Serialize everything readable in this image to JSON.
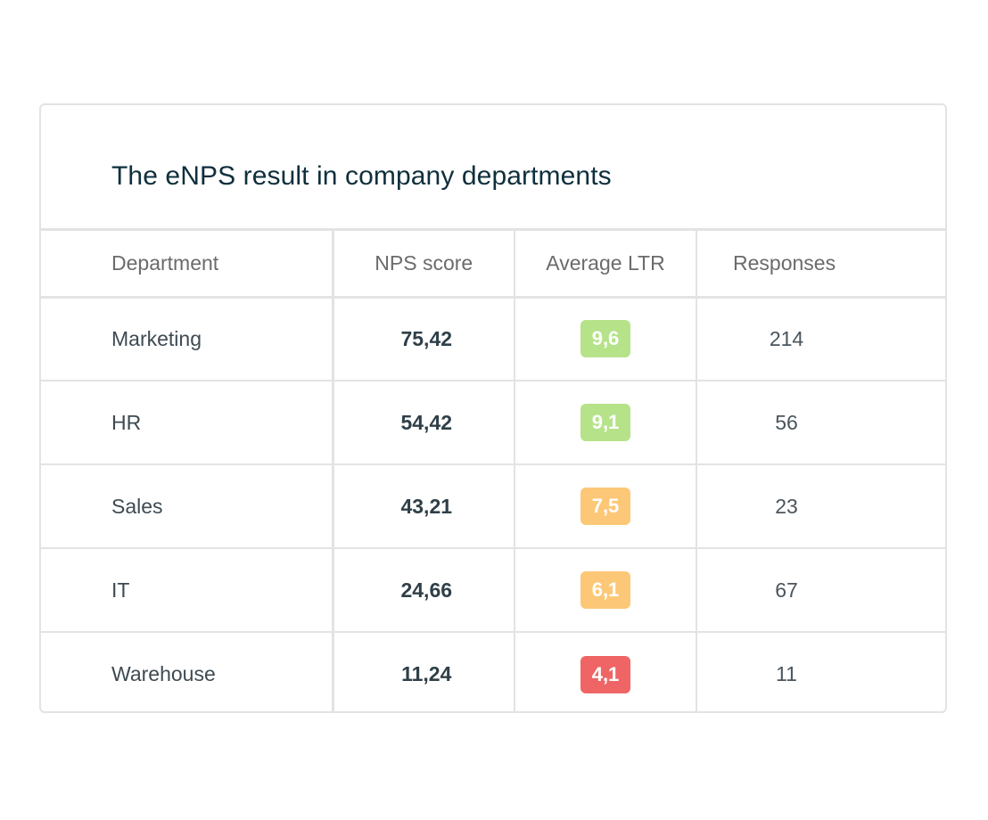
{
  "title": "The eNPS result in company departments",
  "columns": {
    "department": "Department",
    "nps_score": "NPS score",
    "average_ltr": "Average LTR",
    "responses": "Responses"
  },
  "rows": [
    {
      "department": "Marketing",
      "nps_score": "75,42",
      "average_ltr": "9,6",
      "responses": "214",
      "ltr_color": "#b6e38a"
    },
    {
      "department": "HR",
      "nps_score": "54,42",
      "average_ltr": "9,1",
      "responses": "56",
      "ltr_color": "#b6e38a"
    },
    {
      "department": "Sales",
      "nps_score": "43,21",
      "average_ltr": "7,5",
      "responses": "23",
      "ltr_color": "#fcc877"
    },
    {
      "department": "IT",
      "nps_score": "24,66",
      "average_ltr": "6,1",
      "responses": "67",
      "ltr_color": "#fcc877"
    },
    {
      "department": "Warehouse",
      "nps_score": "11,24",
      "average_ltr": "4,1",
      "responses": "11",
      "ltr_color": "#ef6565"
    }
  ],
  "colors": {
    "title": "#0f2f3d",
    "border": "#e3e3e3",
    "good": "#b6e38a",
    "medium": "#fcc877",
    "bad": "#ef6565"
  }
}
